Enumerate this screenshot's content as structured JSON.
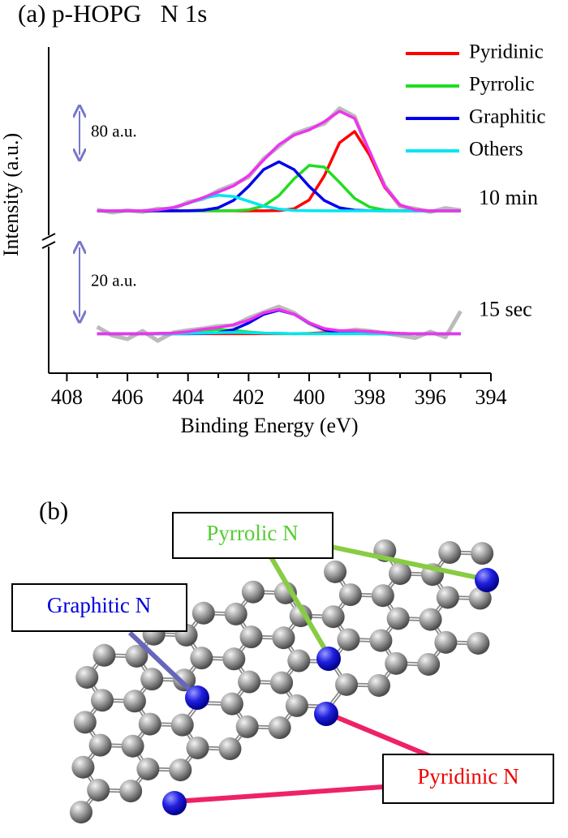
{
  "chart_data": {
    "type": "line",
    "title": "(a) p-HOPG   N 1s",
    "x_label": "Binding Energy (eV)",
    "y_label": "Intensity (a.u.)",
    "xlim": [
      408.6,
      394
    ],
    "xticks": [
      408,
      406,
      404,
      402,
      400,
      398,
      396,
      394
    ],
    "xminorticks": [
      407,
      405,
      403,
      401,
      399,
      397,
      395
    ],
    "legend": "upper right",
    "x": [
      407,
      406.5,
      406,
      405.5,
      405,
      404.5,
      404,
      403.5,
      403,
      402.5,
      402,
      401.5,
      401,
      400.5,
      400,
      399.5,
      399,
      398.5,
      398,
      397.5,
      397,
      396.5,
      396,
      395.5,
      395
    ],
    "spectra": [
      {
        "label": "10 min",
        "scale_bar": {
          "value": 80,
          "label": "80 a.u."
        },
        "ylim": [
          -15,
          290
        ],
        "series": [
          {
            "color": "#bbbbbb",
            "values": [
              2,
              -3,
              1,
              -2,
              4,
              3,
              16,
              22,
              37,
              48,
              62,
              96,
              118,
              141,
              151,
              160,
              188,
              173,
              104,
              46,
              8,
              4,
              -2,
              5,
              1
            ]
          },
          {
            "name": "Pyridinic",
            "color": "#ff0000",
            "values": [
              0,
              0,
              0,
              0,
              0,
              0,
              0,
              0,
              0,
              0,
              0,
              0,
              0.4,
              3.7,
              19.9,
              64.3,
              124.8,
              145.5,
              101.8,
              42.8,
              10.8,
              1.6,
              0.1,
              0,
              0
            ]
          },
          {
            "name": "Pyrrolic",
            "color": "#22dd22",
            "values": [
              0,
              0,
              0,
              0,
              0,
              0,
              0,
              0,
              0,
              0.3,
              2.0,
              9.0,
              27.9,
              58.6,
              83.3,
              80.2,
              52.2,
              23.0,
              6.8,
              1.4,
              0.2,
              0,
              0,
              0,
              0
            ]
          },
          {
            "name": "Graphitic",
            "color": "#0000ee",
            "values": [
              0,
              0,
              0,
              0,
              0,
              0,
              0.2,
              1.2,
              5.7,
              19.0,
              45.0,
              75.7,
              90,
              75.7,
              45.0,
              19.0,
              5.7,
              1.2,
              0.2,
              0,
              0,
              0,
              0,
              0,
              0
            ]
          },
          {
            "name": "Others",
            "color": "#00e5ee",
            "values": [
              0,
              0,
              0.1,
              0.4,
              1.9,
              6.0,
              13.7,
              23.2,
              28.8,
              26.3,
              17.6,
              8.6,
              3.1,
              0.8,
              0.2,
              0,
              0,
              0,
              0,
              0,
              0,
              0,
              0,
              0,
              0
            ]
          },
          {
            "color": "#ee33ee",
            "values": [
              0,
              0,
              0.1,
              0.4,
              1.9,
              6.0,
              13.9,
              24.4,
              34.5,
              45.6,
              64.6,
              93.3,
              121.4,
              138.8,
              148.4,
              163.5,
              182.7,
              169.7,
              108.8,
              44.2,
              11.0,
              1.6,
              0.1,
              0,
              0
            ]
          }
        ]
      },
      {
        "label": "15 sec",
        "scale_bar": {
          "value": 20,
          "label": "20 a.u."
        },
        "ylim": [
          -2,
          26
        ],
        "series": [
          {
            "color": "#bbbbbb",
            "values": [
              2.0,
              -0.5,
              -1.5,
              0.8,
              -2.0,
              0.3,
              1.0,
              1.5,
              2.2,
              2.4,
              4.5,
              6.2,
              7.8,
              6.0,
              3.0,
              1.0,
              0.5,
              1.2,
              0.8,
              0.2,
              -0.5,
              -1.2,
              0.6,
              -1.0,
              6.5
            ]
          },
          {
            "color": "#ff0000",
            "values": [
              0,
              0,
              0,
              0,
              0,
              0,
              0,
              0,
              0,
              0,
              0,
              0,
              0,
              0,
              0.1,
              0.3,
              0.6,
              0.8,
              0.6,
              0.3,
              0.1,
              0,
              0,
              0,
              0
            ]
          },
          {
            "color": "#22dd22",
            "values": [
              0,
              0,
              0,
              0,
              0.1,
              0.2,
              0.5,
              1.0,
              1.2,
              1.0,
              0.5,
              0.2,
              0.1,
              0,
              0,
              0,
              0,
              0,
              0,
              0,
              0,
              0,
              0,
              0,
              0
            ]
          },
          {
            "color": "#0000ee",
            "values": [
              0,
              0,
              0,
              0,
              0,
              0,
              0,
              0.1,
              0.3,
              1.2,
              3.1,
              5.6,
              6.8,
              5.6,
              3.1,
              1.2,
              0.3,
              0.1,
              0,
              0,
              0,
              0,
              0,
              0,
              0
            ]
          },
          {
            "color": "#00e5ee",
            "values": [
              0,
              0,
              0,
              0,
              0,
              0,
              0.1,
              0.2,
              0.3,
              0.4,
              0.3,
              0.2,
              0.1,
              0,
              0,
              0,
              0,
              0,
              0,
              0,
              0,
              0,
              0,
              0,
              0
            ]
          },
          {
            "color": "#ee33ee",
            "values": [
              0,
              0,
              0,
              0,
              0.1,
              0.2,
              0.6,
              1.3,
              1.8,
              2.6,
              3.9,
              6.0,
              7.0,
              5.6,
              3.2,
              1.5,
              0.9,
              0.9,
              0.6,
              0.3,
              0.1,
              0,
              0,
              0,
              0
            ]
          }
        ]
      }
    ]
  },
  "panel_b": {
    "label": "(b)",
    "callouts": [
      {
        "text": "Pyrrolic N",
        "color": "#55cc33"
      },
      {
        "text": "Graphitic N",
        "color": "#0000dd"
      },
      {
        "text": "Pyridinic N",
        "color": "#ee0000"
      }
    ]
  }
}
